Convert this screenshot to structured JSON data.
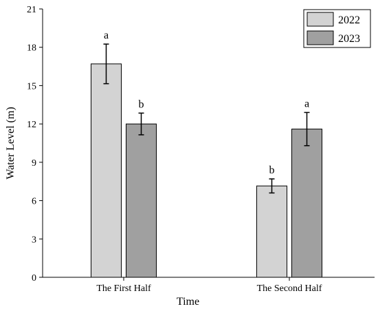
{
  "chart_data": {
    "type": "bar",
    "xlabel": "Time",
    "ylabel": "Water Level (m)",
    "categories": [
      "The First Half",
      "The Second Half"
    ],
    "ylim": [
      0,
      21
    ],
    "yticks": [
      0,
      3,
      6,
      9,
      12,
      15,
      18,
      21
    ],
    "series": [
      {
        "name": "2022",
        "color": "#d3d3d3",
        "values": [
          16.7,
          7.15
        ],
        "errors": [
          1.55,
          0.55
        ],
        "labels": [
          "a",
          "b"
        ]
      },
      {
        "name": "2023",
        "color": "#a0a0a0",
        "values": [
          12.0,
          11.6
        ],
        "errors": [
          0.85,
          1.3
        ],
        "labels": [
          "b",
          "a"
        ]
      }
    ],
    "legend_position": "top-right",
    "grid": false
  }
}
